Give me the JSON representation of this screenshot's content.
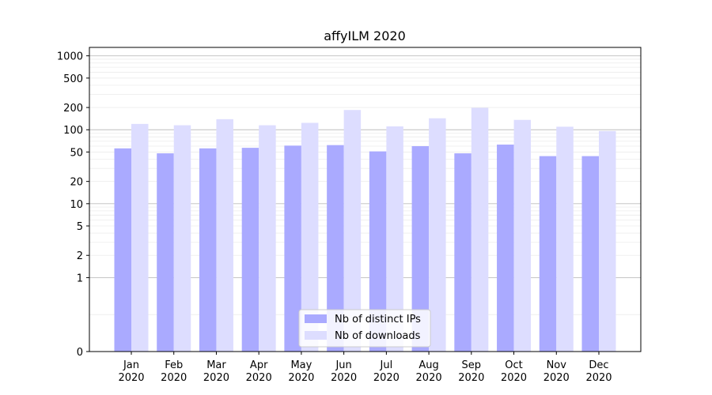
{
  "chart_data": {
    "type": "bar",
    "title": "affyILM 2020",
    "xlabel": "",
    "ylabel": "",
    "y_scale": "symlog",
    "ylim": [
      0,
      1300
    ],
    "y_ticks": [
      0,
      1,
      2,
      5,
      10,
      20,
      50,
      100,
      200,
      500,
      1000
    ],
    "grid": true,
    "legend_position": "bottom-center",
    "categories": [
      "Jan\n2020",
      "Feb\n2020",
      "Mar\n2020",
      "Apr\n2020",
      "May\n2020",
      "Jun\n2020",
      "Jul\n2020",
      "Aug\n2020",
      "Sep\n2020",
      "Oct\n2020",
      "Nov\n2020",
      "Dec\n2020"
    ],
    "category_lines": [
      [
        "Jan",
        "2020"
      ],
      [
        "Feb",
        "2020"
      ],
      [
        "Mar",
        "2020"
      ],
      [
        "Apr",
        "2020"
      ],
      [
        "May",
        "2020"
      ],
      [
        "Jun",
        "2020"
      ],
      [
        "Jul",
        "2020"
      ],
      [
        "Aug",
        "2020"
      ],
      [
        "Sep",
        "2020"
      ],
      [
        "Oct",
        "2020"
      ],
      [
        "Nov",
        "2020"
      ],
      [
        "Dec",
        "2020"
      ]
    ],
    "series": [
      {
        "name": "Nb of distinct IPs",
        "color": "#aaaaff",
        "values": [
          56,
          48,
          56,
          57,
          61,
          62,
          51,
          60,
          48,
          63,
          44,
          44
        ]
      },
      {
        "name": "Nb of downloads",
        "color": "#ddddff",
        "values": [
          120,
          115,
          139,
          115,
          124,
          185,
          111,
          143,
          198,
          136,
          110,
          96
        ]
      }
    ]
  }
}
